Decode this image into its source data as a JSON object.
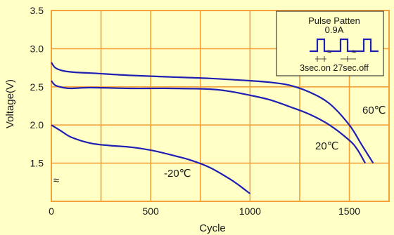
{
  "chart_data": {
    "type": "line",
    "title": "",
    "xlabel": "Cycle",
    "ylabel": "Voltage(V)",
    "xlim": [
      0,
      1700
    ],
    "ylim": [
      1.0,
      3.5
    ],
    "x_ticks": [
      0,
      500,
      1000,
      1500
    ],
    "y_ticks": [
      1.5,
      2.0,
      2.5,
      3.0,
      3.5
    ],
    "y_tick_labels": [
      "1.5",
      "2.0",
      "2.5",
      "3.0",
      "3.5"
    ],
    "x_tick_labels": [
      "0",
      "500",
      "1000",
      "1500"
    ],
    "axis_break_symbol": "≈",
    "grid": true,
    "colors": {
      "background": "#ffffc6",
      "grid": "#f4a13a",
      "line": "#1f1fb4",
      "axis": "#f4a13a"
    },
    "series": [
      {
        "label": "60℃",
        "x": [
          0,
          20,
          60,
          120,
          200,
          400,
          600,
          800,
          1000,
          1100,
          1200,
          1300,
          1400,
          1500,
          1560,
          1620
        ],
        "y": [
          2.82,
          2.75,
          2.71,
          2.69,
          2.68,
          2.65,
          2.63,
          2.61,
          2.58,
          2.56,
          2.52,
          2.43,
          2.28,
          2.0,
          1.75,
          1.5
        ]
      },
      {
        "label": "20℃",
        "x": [
          0,
          20,
          60,
          100,
          200,
          400,
          600,
          800,
          900,
          1000,
          1100,
          1200,
          1300,
          1400,
          1500,
          1540,
          1580
        ],
        "y": [
          2.58,
          2.52,
          2.49,
          2.48,
          2.49,
          2.48,
          2.48,
          2.47,
          2.44,
          2.39,
          2.33,
          2.24,
          2.14,
          2.0,
          1.8,
          1.68,
          1.5
        ]
      },
      {
        "label": "-20℃",
        "x": [
          0,
          50,
          100,
          200,
          300,
          400,
          500,
          600,
          700,
          800,
          900,
          950,
          1000
        ],
        "y": [
          2.0,
          1.92,
          1.84,
          1.76,
          1.73,
          1.71,
          1.67,
          1.61,
          1.54,
          1.44,
          1.29,
          1.2,
          1.1
        ]
      }
    ],
    "annotations": [
      "60℃",
      "20℃",
      "-20℃"
    ],
    "inset": {
      "title": "Pulse Patten",
      "current": "0.9A",
      "timing": "3sec.on 27sec.off"
    }
  }
}
